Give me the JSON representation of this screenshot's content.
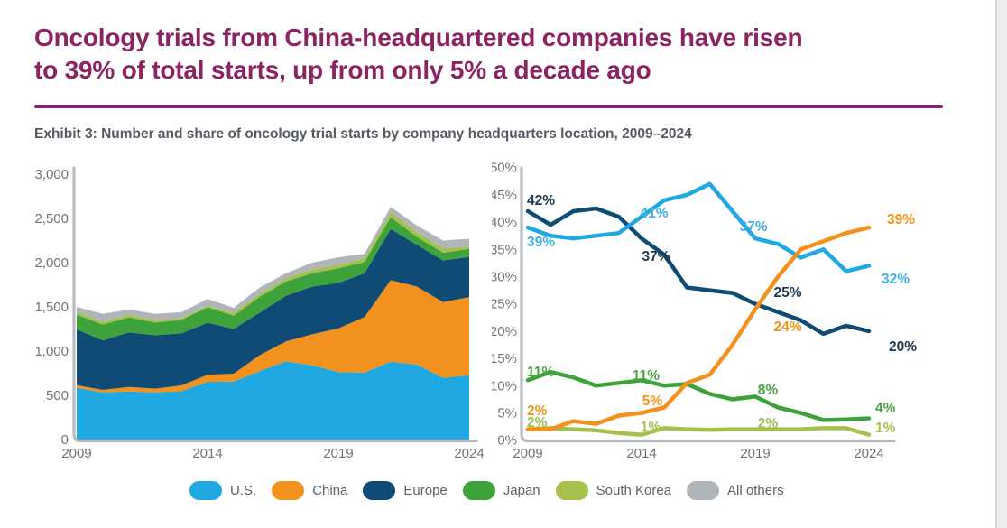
{
  "page": {
    "title_line1": "Oncology trials from China-headquartered companies have risen",
    "title_line2": "to 39% of total starts, up from only 5% a decade ago",
    "exhibit_caption": "Exhibit 3: Number and share of oncology trial starts by company headquarters location, 2009–2024"
  },
  "colors": {
    "us": "#1fa8e1",
    "china": "#f2911d",
    "europe": "#0f4b74",
    "japan": "#3ea23a",
    "south_korea": "#a6c04c",
    "all_others": "#b0b5ba",
    "us_label": "#3fb0e6",
    "china_label": "#f2941e",
    "europe_label": "#20394f",
    "japan_label": "#4aa442",
    "south_korea_label": "#a6bf52",
    "title": "#8c2363",
    "divider": "#82246f",
    "caption": "#565b63",
    "axis": "#b7bbc0",
    "tick": "#6e747b",
    "legend_text": "#5d6167",
    "edge": "#eeeef0",
    "edge_line": "#d2d4d6"
  },
  "legend": {
    "position": "bottom",
    "items": [
      {
        "key": "us",
        "label": "U.S."
      },
      {
        "key": "china",
        "label": "China"
      },
      {
        "key": "europe",
        "label": "Europe"
      },
      {
        "key": "japan",
        "label": "Japan"
      },
      {
        "key": "south_korea",
        "label": "South Korea"
      },
      {
        "key": "all_others",
        "label": "All others"
      }
    ]
  },
  "chart_data": [
    {
      "name": "oncology-trial-starts-by-hq",
      "type": "area",
      "stacked": true,
      "grid": false,
      "x": [
        2009,
        2010,
        2011,
        2012,
        2013,
        2014,
        2015,
        2016,
        2017,
        2018,
        2019,
        2020,
        2021,
        2022,
        2023,
        2024
      ],
      "xtick_labels": [
        "2009",
        "2014",
        "2019",
        "2024"
      ],
      "ylim": [
        0,
        3000
      ],
      "ytick_values": [
        0,
        500,
        1000,
        1500,
        2000,
        2500,
        3000
      ],
      "ytick_labels": [
        "0",
        "500",
        "1,000",
        "1,500",
        "2,000",
        "2,500",
        "3,000"
      ],
      "series": [
        {
          "key": "us",
          "name": "U.S.",
          "values": [
            585,
            533,
            544,
            533,
            547,
            652,
            656,
            774,
            884,
            840,
            762,
            756,
            881,
            847,
            698,
            726
          ]
        },
        {
          "key": "china",
          "name": "China",
          "values": [
            30,
            28,
            51,
            43,
            65,
            80,
            89,
            181,
            226,
            350,
            494,
            630,
            921,
            883,
            855,
            885
          ]
        },
        {
          "key": "europe",
          "name": "Europe",
          "values": [
            630,
            561,
            617,
            604,
            590,
            588,
            507,
            482,
            517,
            540,
            515,
            494,
            579,
            472,
            473,
            454
          ]
        },
        {
          "key": "japan",
          "name": "Japan",
          "values": [
            165,
            178,
            169,
            142,
            151,
            175,
            149,
            177,
            160,
            150,
            165,
            126,
            132,
            90,
            86,
            91
          ]
        },
        {
          "key": "south_korea",
          "name": "South Korea",
          "values": [
            30,
            31,
            29,
            26,
            19,
            16,
            33,
            34,
            36,
            40,
            41,
            42,
            53,
            53,
            50,
            23
          ]
        },
        {
          "key": "all_others",
          "name": "All others",
          "values": [
            60,
            89,
            60,
            72,
            68,
            79,
            56,
            72,
            57,
            80,
            83,
            52,
            64,
            75,
            88,
            91
          ]
        }
      ]
    },
    {
      "name": "oncology-trial-share-by-hq",
      "type": "line",
      "grid": false,
      "unit": "%",
      "x": [
        2009,
        2010,
        2011,
        2012,
        2013,
        2014,
        2015,
        2016,
        2017,
        2018,
        2019,
        2020,
        2021,
        2022,
        2023,
        2024
      ],
      "xtick_labels": [
        "2009",
        "2014",
        "2019",
        "2024"
      ],
      "ylim": [
        0,
        50
      ],
      "ytick_labels": [
        "0%",
        "5%",
        "10%",
        "15%",
        "20%",
        "25%",
        "30%",
        "35%",
        "40%",
        "45%",
        "50%"
      ],
      "series": [
        {
          "key": "south_korea",
          "name": "South Korea",
          "values": [
            2,
            2.2,
            2,
            1.8,
            1.3,
            1,
            2.2,
            2,
            1.9,
            2,
            2,
            2,
            2,
            2.2,
            2.2,
            1
          ]
        },
        {
          "key": "japan",
          "name": "Japan",
          "values": [
            11,
            12.5,
            11.5,
            10,
            10.5,
            11,
            10,
            10.3,
            8.5,
            7.5,
            8,
            6,
            5,
            3.7,
            3.8,
            4
          ]
        },
        {
          "key": "europe",
          "name": "Europe",
          "values": [
            42,
            39.5,
            42,
            42.5,
            41,
            37,
            34,
            28,
            27.5,
            27,
            25,
            23.5,
            22,
            19.5,
            21,
            20
          ]
        },
        {
          "key": "us",
          "name": "U.S.",
          "values": [
            39,
            37.5,
            37,
            37.5,
            38,
            41,
            44,
            45,
            47,
            42,
            37,
            36,
            33.5,
            35,
            31,
            32
          ]
        },
        {
          "key": "china",
          "name": "China",
          "values": [
            2,
            2,
            3.5,
            3,
            4.5,
            5,
            6,
            10.5,
            12,
            17.5,
            24,
            30,
            35,
            36.5,
            38,
            39
          ]
        }
      ],
      "labels": [
        {
          "series": "europe",
          "year": 2009,
          "text": "42%",
          "x": 39,
          "y": 47,
          "anchor": "start"
        },
        {
          "series": "us",
          "year": 2009,
          "text": "39%",
          "x": 39,
          "y": 93,
          "anchor": "start"
        },
        {
          "series": "us",
          "year": 2014,
          "text": "41%",
          "x": 180,
          "y": 61,
          "anchor": "middle"
        },
        {
          "series": "europe",
          "year": 2014,
          "text": "37%",
          "x": 182,
          "y": 109,
          "anchor": "middle"
        },
        {
          "series": "us",
          "year": 2019,
          "text": "37%",
          "x": 290,
          "y": 76,
          "anchor": "middle"
        },
        {
          "series": "europe",
          "year": 2019,
          "text": "25%",
          "x": 328,
          "y": 149,
          "anchor": "middle"
        },
        {
          "series": "china",
          "year": 2019,
          "text": "24%",
          "x": 328,
          "y": 187,
          "anchor": "middle"
        },
        {
          "series": "china",
          "year": 2024,
          "text": "39%",
          "x": 438,
          "y": 68,
          "anchor": "start"
        },
        {
          "series": "us",
          "year": 2024,
          "text": "32%",
          "x": 432,
          "y": 134,
          "anchor": "start"
        },
        {
          "series": "europe",
          "year": 2024,
          "text": "20%",
          "x": 440,
          "y": 209,
          "anchor": "start"
        },
        {
          "series": "japan",
          "year": 2009,
          "text": "11%",
          "x": 39,
          "y": 237,
          "anchor": "start"
        },
        {
          "series": "japan",
          "year": 2014,
          "text": "11%",
          "x": 171,
          "y": 241,
          "anchor": "middle"
        },
        {
          "series": "japan",
          "year": 2019,
          "text": "8%",
          "x": 306,
          "y": 257,
          "anchor": "middle"
        },
        {
          "series": "japan",
          "year": 2024,
          "text": "4%",
          "x": 425,
          "y": 277,
          "anchor": "start"
        },
        {
          "series": "china",
          "year": 2014,
          "text": "5%",
          "x": 178,
          "y": 269,
          "anchor": "middle"
        },
        {
          "series": "china",
          "year": 2009,
          "text": "2%",
          "x": 39,
          "y": 280,
          "anchor": "start"
        },
        {
          "series": "south_korea",
          "year": 2009,
          "text": "2%",
          "x": 39,
          "y": 293,
          "anchor": "start"
        },
        {
          "series": "south_korea",
          "year": 2014,
          "text": "1%",
          "x": 176,
          "y": 298,
          "anchor": "middle"
        },
        {
          "series": "south_korea",
          "year": 2019,
          "text": "2%",
          "x": 306,
          "y": 294,
          "anchor": "middle"
        },
        {
          "series": "south_korea",
          "year": 2024,
          "text": "1%",
          "x": 425,
          "y": 299,
          "anchor": "start"
        }
      ]
    }
  ]
}
